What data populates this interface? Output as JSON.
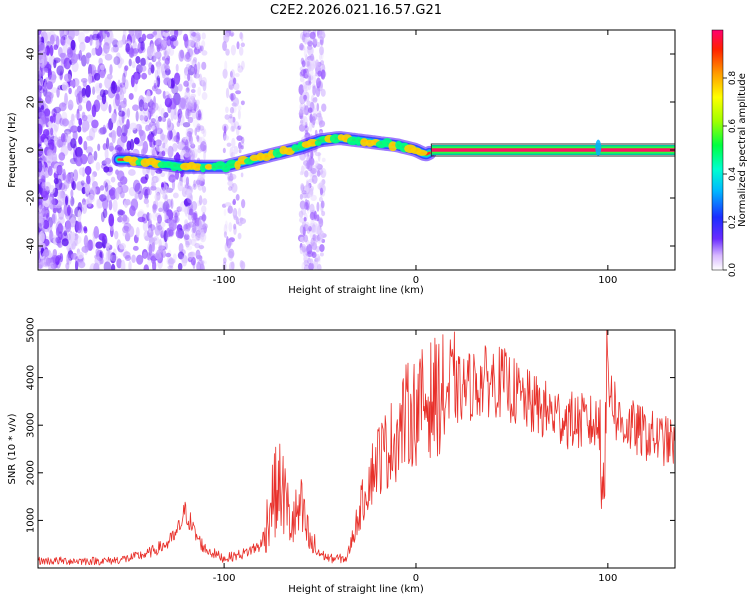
{
  "title": "C2E2.2026.021.16.57.G21",
  "chart_data": [
    {
      "type": "heatmap",
      "xlabel": "Height of straight line (km)",
      "ylabel": "Frequency (Hz)",
      "xlim": [
        -197,
        135
      ],
      "ylim": [
        -50,
        50
      ],
      "x_ticks": [
        -100,
        0,
        100
      ],
      "y_ticks": [
        -40,
        -20,
        0,
        20,
        40
      ],
      "x_tick_labels": [
        "-100",
        "0",
        "100"
      ],
      "y_tick_labels": [
        "-40",
        "-20",
        "0",
        "20",
        "40"
      ],
      "ridge": {
        "description_series": "Frequency of peak spectral amplitude vs height",
        "x": [
          -150,
          -140,
          -130,
          -120,
          -110,
          -100,
          -90,
          -80,
          -70,
          -60,
          -50,
          -40,
          -30,
          -20,
          -10,
          0,
          5,
          10,
          20,
          40,
          60,
          80,
          90,
          95,
          100,
          135
        ],
        "y": [
          -4,
          -5,
          -6,
          -7,
          -7,
          -7,
          -5,
          -3,
          -1,
          1,
          4,
          5,
          4,
          3,
          2,
          0,
          -2,
          0,
          0,
          0,
          0,
          0,
          0,
          1,
          0,
          0
        ]
      },
      "colorbar": {
        "label": "Normalized spectral amplitude",
        "range": [
          0,
          1
        ],
        "ticks": [
          0.0,
          0.2,
          0.4,
          0.6,
          0.8
        ],
        "tick_labels": [
          "0.0",
          "0.2",
          "0.4",
          "0.6",
          "0.8"
        ]
      }
    },
    {
      "type": "line",
      "xlabel": "Height of straight line (km)",
      "ylabel": "SNR (10 * v/v)",
      "xlim": [
        -197,
        135
      ],
      "ylim": [
        0,
        5000
      ],
      "x_ticks": [
        -100,
        0,
        100
      ],
      "y_ticks": [
        1000,
        2000,
        3000,
        4000,
        5000
      ],
      "x_tick_labels": [
        "-100",
        "0",
        "100"
      ],
      "y_tick_labels": [
        "1000",
        "2000",
        "3000",
        "4000",
        "5000"
      ],
      "series": [
        {
          "name": "SNR",
          "color": "#e8302a",
          "x": [
            -197,
            -180,
            -160,
            -150,
            -140,
            -130,
            -125,
            -120,
            -115,
            -110,
            -100,
            -90,
            -80,
            -75,
            -70,
            -65,
            -60,
            -55,
            -50,
            -45,
            -40,
            -36,
            -30,
            -25,
            -20,
            -15,
            -10,
            -5,
            0,
            5,
            10,
            20,
            30,
            40,
            45,
            50,
            55,
            60,
            70,
            80,
            90,
            95,
            98,
            100,
            105,
            110,
            120,
            135
          ],
          "y": [
            150,
            150,
            150,
            200,
            300,
            500,
            700,
            1200,
            700,
            400,
            200,
            300,
            500,
            1500,
            1700,
            900,
            1200,
            500,
            300,
            200,
            200,
            200,
            1100,
            1800,
            2300,
            2500,
            2800,
            3200,
            3300,
            3500,
            3600,
            3700,
            3850,
            3950,
            3900,
            3750,
            3550,
            3450,
            3250,
            3100,
            3050,
            3000,
            2200,
            4200,
            3100,
            3000,
            2800,
            2600
          ]
        }
      ]
    }
  ]
}
